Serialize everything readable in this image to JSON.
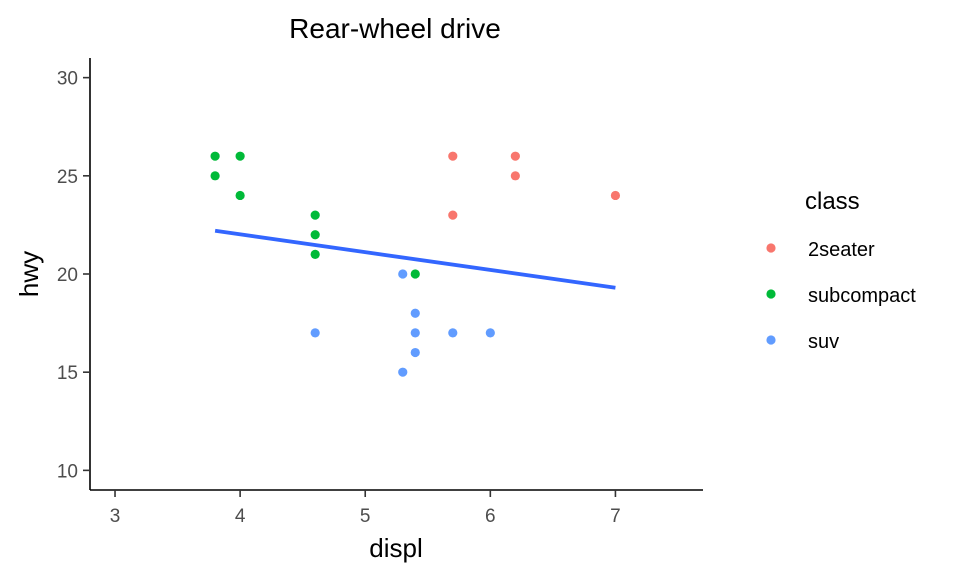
{
  "chart_data": {
    "type": "scatter",
    "title": "Rear-wheel drive",
    "xlabel": "displ",
    "ylabel": "hwy",
    "xlim": [
      2.8,
      7.7
    ],
    "ylim": [
      9,
      31
    ],
    "x_ticks": [
      3,
      4,
      5,
      6,
      7
    ],
    "y_ticks": [
      10,
      15,
      20,
      25,
      30
    ],
    "grid": false,
    "legend": {
      "title": "class",
      "position": "right",
      "entries": [
        "2seater",
        "subcompact",
        "suv"
      ]
    },
    "series": [
      {
        "name": "2seater",
        "color": "#F8766D",
        "points": [
          [
            5.7,
            26
          ],
          [
            5.7,
            23
          ],
          [
            6.2,
            26
          ],
          [
            6.2,
            25
          ],
          [
            7.0,
            24
          ]
        ]
      },
      {
        "name": "subcompact",
        "color": "#00BA38",
        "points": [
          [
            3.8,
            26
          ],
          [
            3.8,
            25
          ],
          [
            4.0,
            26
          ],
          [
            4.0,
            24
          ],
          [
            4.6,
            23
          ],
          [
            4.6,
            22
          ],
          [
            4.6,
            21
          ],
          [
            5.4,
            20
          ]
        ]
      },
      {
        "name": "suv",
        "color": "#619CFF",
        "points": [
          [
            4.6,
            17
          ],
          [
            5.3,
            20
          ],
          [
            5.3,
            15
          ],
          [
            5.4,
            18
          ],
          [
            5.4,
            17
          ],
          [
            5.4,
            16
          ],
          [
            5.7,
            17
          ],
          [
            6.0,
            17
          ]
        ]
      }
    ],
    "trend_line": {
      "method": "lm",
      "color": "#3366FF",
      "x": [
        3.8,
        7.0
      ],
      "y": [
        22.2,
        19.3
      ]
    }
  }
}
